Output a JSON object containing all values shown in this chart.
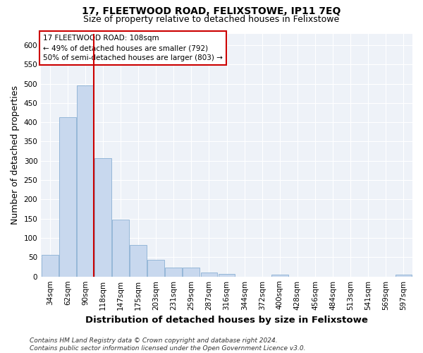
{
  "title": "17, FLEETWOOD ROAD, FELIXSTOWE, IP11 7EQ",
  "subtitle": "Size of property relative to detached houses in Felixstowe",
  "xlabel": "Distribution of detached houses by size in Felixstowe",
  "ylabel": "Number of detached properties",
  "categories": [
    "34sqm",
    "62sqm",
    "90sqm",
    "118sqm",
    "147sqm",
    "175sqm",
    "203sqm",
    "231sqm",
    "259sqm",
    "287sqm",
    "316sqm",
    "344sqm",
    "372sqm",
    "400sqm",
    "428sqm",
    "456sqm",
    "484sqm",
    "513sqm",
    "541sqm",
    "569sqm",
    "597sqm"
  ],
  "bar_heights": [
    57,
    413,
    495,
    307,
    148,
    82,
    44,
    23,
    24,
    10,
    6,
    0,
    0,
    5,
    0,
    0,
    0,
    0,
    0,
    0,
    5
  ],
  "bar_color": "#c8d8ee",
  "bar_edge_color": "#8ab0d4",
  "vline_x": 2.5,
  "vline_color": "#cc0000",
  "annotation_lines": [
    "17 FLEETWOOD ROAD: 108sqm",
    "← 49% of detached houses are smaller (792)",
    "50% of semi-detached houses are larger (803) →"
  ],
  "annotation_box_color": "#cc0000",
  "ylim": [
    0,
    630
  ],
  "yticks": [
    0,
    50,
    100,
    150,
    200,
    250,
    300,
    350,
    400,
    450,
    500,
    550,
    600
  ],
  "footer_line1": "Contains HM Land Registry data © Crown copyright and database right 2024.",
  "footer_line2": "Contains public sector information licensed under the Open Government Licence v3.0.",
  "background_color": "#ffffff",
  "plot_bg_color": "#eef2f8",
  "grid_color": "#ffffff",
  "title_fontsize": 10,
  "subtitle_fontsize": 9,
  "axis_label_fontsize": 9,
  "tick_fontsize": 7.5,
  "annotation_fontsize": 7.5,
  "footer_fontsize": 6.5
}
